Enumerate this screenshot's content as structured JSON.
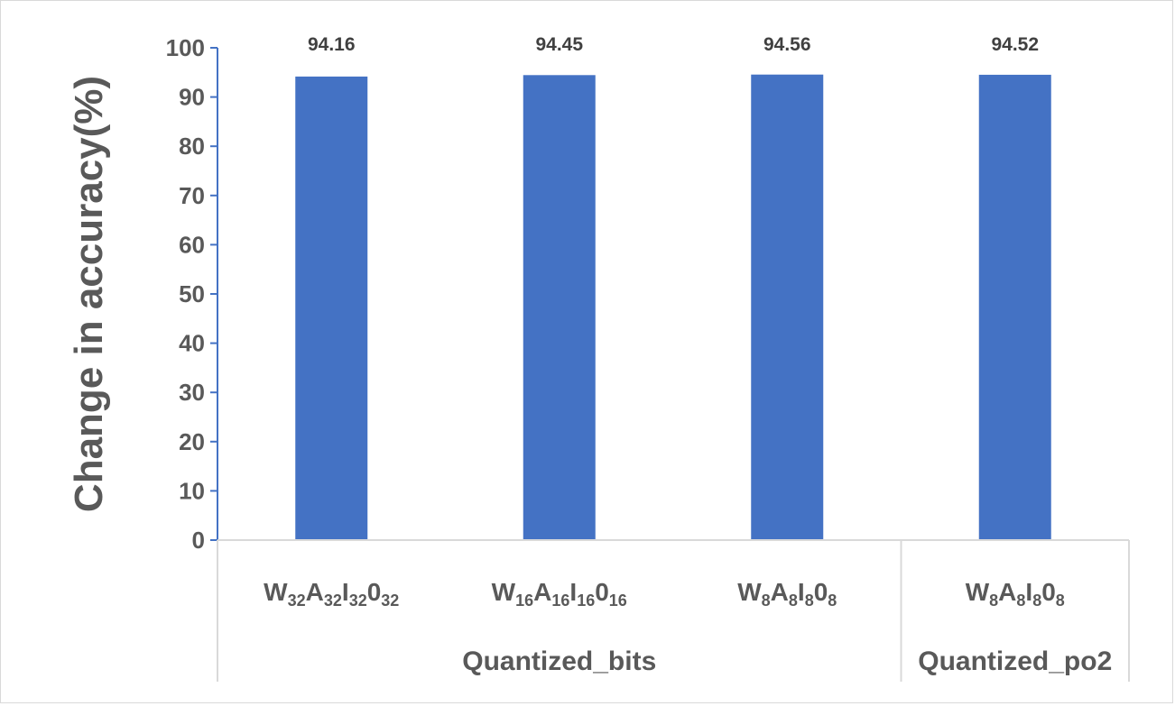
{
  "chart_data": {
    "type": "bar",
    "ylabel": "Change in accuracy(%)",
    "ylim": [
      0,
      100
    ],
    "yticks": [
      0,
      10,
      20,
      30,
      40,
      50,
      60,
      70,
      80,
      90,
      100
    ],
    "categories": [
      {
        "parts": [
          [
            "W",
            ""
          ],
          [
            "32",
            "sub"
          ],
          [
            "A",
            ""
          ],
          [
            "32",
            "sub"
          ],
          [
            "I",
            ""
          ],
          [
            "32",
            "sub"
          ],
          [
            "0",
            ""
          ],
          [
            "32",
            "sub"
          ]
        ]
      },
      {
        "parts": [
          [
            "W",
            ""
          ],
          [
            "16",
            "sub"
          ],
          [
            "A",
            ""
          ],
          [
            "16",
            "sub"
          ],
          [
            "I",
            ""
          ],
          [
            "16",
            "sub"
          ],
          [
            "0",
            ""
          ],
          [
            "16",
            "sub"
          ]
        ]
      },
      {
        "parts": [
          [
            "W",
            ""
          ],
          [
            "8",
            "sub"
          ],
          [
            "A",
            ""
          ],
          [
            "8",
            "sub"
          ],
          [
            "I",
            ""
          ],
          [
            "8",
            "sub"
          ],
          [
            "0",
            ""
          ],
          [
            "8",
            "sub"
          ]
        ]
      },
      {
        "parts": [
          [
            "W",
            ""
          ],
          [
            "8",
            "sub"
          ],
          [
            "A",
            ""
          ],
          [
            "8",
            "sub"
          ],
          [
            "I",
            ""
          ],
          [
            "8",
            "sub"
          ],
          [
            "0",
            ""
          ],
          [
            "8",
            "sub"
          ]
        ]
      }
    ],
    "groups": [
      {
        "label": "Quantized_bits",
        "categories": [
          0,
          1,
          2
        ]
      },
      {
        "label": "Quantized_po2",
        "categories": [
          3
        ]
      }
    ],
    "series": [
      {
        "values": [
          94.16,
          94.45,
          94.56,
          94.52
        ],
        "color": "#4472c4"
      }
    ],
    "data_labels": [
      "94.16",
      "94.45",
      "94.56",
      "94.52"
    ],
    "grid": false
  }
}
